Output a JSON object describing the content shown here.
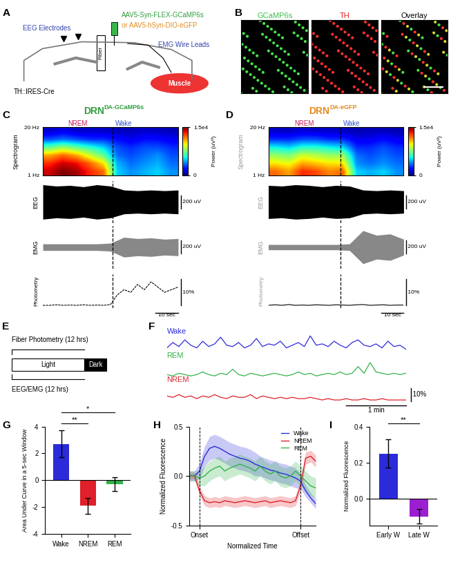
{
  "panel_labels": [
    "A",
    "B",
    "C",
    "D",
    "E",
    "F",
    "G",
    "H",
    "I"
  ],
  "schematic": {
    "virus": "AAV5-Syn-FLEX-GCaMP6s",
    "virus_alt": "or AAV5-hSyn-DIO-eGFP",
    "eeg": "EEG Electrodes",
    "fiber": "Fiber",
    "emg": "EMG Wire Leads",
    "muscle": "Muscle",
    "mouse_line": "TH::IRES-Cre"
  },
  "microscopy": {
    "channels": [
      "GCaMP6s",
      "TH",
      "Overlay"
    ]
  },
  "recordings": [
    {
      "title": "DRN",
      "title_superscript": "DA-GCaMP6s",
      "color": "#2e9e3e",
      "states": [
        "NREM",
        "Wake"
      ],
      "transition": 31,
      "time_range": [
        0,
        60
      ],
      "spectrogram": {
        "label": "Spectrogram",
        "freq_range": [
          1,
          20
        ],
        "freq_labels": [
          "1 Hz",
          "20 Hz"
        ],
        "cells": [
          [
            14000,
            15000,
            14500,
            13000,
            12000,
            5000,
            4000,
            4500,
            5000,
            4000
          ],
          [
            13000,
            14000,
            13500,
            12000,
            10000,
            4500,
            3500,
            4000,
            4500,
            3500
          ],
          [
            11000,
            12000,
            11000,
            9000,
            7000,
            3500,
            3000,
            3500,
            4000,
            3000
          ],
          [
            7000,
            8000,
            7000,
            6000,
            5000,
            3000,
            2500,
            3000,
            3000,
            2500
          ],
          [
            3000,
            3500,
            3000,
            2500,
            2500,
            2000,
            1500,
            2000,
            2000,
            1500
          ],
          [
            1000,
            1500,
            1000,
            1000,
            1000,
            800,
            800,
            1000,
            900,
            800
          ]
        ],
        "colorbar": {
          "range": [
            0,
            15000
          ],
          "ticks": [
            0,
            {
              "value": 15000,
              "label": "1.5e4"
            }
          ],
          "label": "Power (uV²)"
        }
      },
      "eeg": {
        "label": "EEG",
        "t": [
          0,
          6,
          12,
          18,
          24,
          30,
          36,
          42,
          48,
          54,
          60
        ],
        "envelope": [
          260,
          240,
          250,
          230,
          260,
          240,
          180,
          170,
          180,
          170,
          180
        ],
        "range": [
          -320,
          320
        ],
        "scale_bar": {
          "value": 200,
          "label": "200 uV"
        }
      },
      "emg": {
        "label": "EMG",
        "t": [
          0,
          6,
          12,
          18,
          24,
          30,
          36,
          42,
          48,
          54,
          60
        ],
        "envelope": [
          50,
          50,
          50,
          50,
          50,
          60,
          150,
          130,
          140,
          120,
          130
        ],
        "range": [
          -320,
          320
        ],
        "scale_bar": {
          "value": 200,
          "label": "200 uV"
        }
      },
      "photometry": {
        "label": "Photometry",
        "t": [
          0,
          3,
          6,
          9,
          12,
          15,
          18,
          21,
          24,
          27,
          30,
          33,
          36,
          39,
          42,
          45,
          48,
          51,
          54,
          57,
          60
        ],
        "values": [
          0,
          0,
          0.2,
          0,
          0.1,
          0,
          0.2,
          0,
          0.1,
          0,
          0.3,
          4,
          6,
          5,
          8,
          6,
          9,
          7,
          5,
          6,
          7
        ],
        "range": [
          -1,
          12
        ],
        "scale_bar": {
          "value": 10,
          "label": "10%"
        }
      },
      "time_scale_bar": {
        "value": 10,
        "label": "10 sec"
      }
    },
    {
      "title": "DRN",
      "title_superscript": "DA-eGFP",
      "color": "#e58a1f",
      "states": [
        "NREM",
        "Wake"
      ],
      "transition": 32,
      "time_range": [
        0,
        60
      ],
      "spectrogram": {
        "label": "Spectrogram",
        "freq_range": [
          1,
          20
        ],
        "freq_labels": [
          "1 Hz",
          "20 Hz"
        ],
        "cells": [
          [
            12000,
            11000,
            13000,
            12500,
            11500,
            12000,
            5000,
            4500,
            5000,
            4000
          ],
          [
            10000,
            9500,
            11000,
            10500,
            10000,
            10000,
            4000,
            3500,
            4000,
            3500
          ],
          [
            8000,
            7500,
            9000,
            8500,
            8000,
            8000,
            3500,
            3000,
            3500,
            3000
          ],
          [
            5500,
            5000,
            6000,
            6000,
            5500,
            5000,
            2500,
            2500,
            3000,
            2500
          ],
          [
            2500,
            2500,
            3000,
            3000,
            2500,
            2500,
            1500,
            1500,
            2000,
            1500
          ],
          [
            1000,
            900,
            1200,
            1000,
            1000,
            900,
            700,
            800,
            800,
            700
          ]
        ],
        "colorbar": {
          "range": [
            0,
            15000
          ],
          "ticks": [
            0,
            {
              "value": 15000,
              "label": "1.5e4"
            }
          ],
          "label": "Power (uV²)"
        }
      },
      "eeg": {
        "label": "EEG",
        "t": [
          0,
          6,
          12,
          18,
          24,
          30,
          36,
          42,
          48,
          54,
          60
        ],
        "envelope": [
          250,
          240,
          260,
          250,
          230,
          250,
          240,
          180,
          170,
          180,
          170
        ],
        "range": [
          -320,
          320
        ],
        "scale_bar": {
          "value": 200,
          "label": "200 uV"
        }
      },
      "emg": {
        "label": "EMG",
        "t": [
          0,
          6,
          12,
          18,
          24,
          30,
          36,
          42,
          48,
          54,
          60
        ],
        "envelope": [
          40,
          40,
          40,
          40,
          40,
          40,
          50,
          250,
          180,
          200,
          120
        ],
        "range": [
          -320,
          320
        ],
        "scale_bar": {
          "value": 200,
          "label": "200 uV"
        }
      },
      "photometry": {
        "label": "Photometry",
        "t": [
          0,
          3,
          6,
          9,
          12,
          15,
          18,
          21,
          24,
          27,
          30,
          33,
          36,
          39,
          42,
          45,
          48,
          51,
          54,
          57,
          60
        ],
        "values": [
          0,
          0.2,
          0,
          0.3,
          0,
          0.1,
          0,
          0.2,
          0.1,
          0,
          0.2,
          0.1,
          0,
          0.2,
          0.3,
          0,
          0.1,
          0.2,
          0,
          0.1,
          0.1
        ],
        "range": [
          -1,
          12
        ],
        "scale_bar": {
          "value": 10,
          "label": "10%"
        }
      },
      "time_scale_bar": {
        "value": 10,
        "label": "10 sec"
      }
    }
  ],
  "timeline": {
    "top": "Fiber Photometry (12 hrs)",
    "light": "Light",
    "dark": "Dark",
    "bottom": "EEG/EMG (12 hrs)"
  },
  "traces": {
    "t": [
      0,
      6,
      12,
      18,
      24,
      30,
      36,
      42,
      48,
      54,
      60,
      66,
      72,
      78,
      84,
      90,
      96,
      102,
      108,
      114,
      120,
      126,
      132,
      138,
      144,
      150,
      156,
      162,
      168,
      174,
      180,
      186,
      192,
      198,
      204,
      210,
      216,
      222,
      228,
      234,
      240
    ],
    "series": [
      {
        "name": "Wake",
        "color": "#2b2bd9",
        "values": [
          4,
          8,
          5,
          10,
          6,
          4,
          9,
          5,
          7,
          12,
          6,
          5,
          8,
          4,
          6,
          11,
          5,
          7,
          6,
          9,
          4,
          6,
          8,
          5,
          13,
          6,
          7,
          5,
          9,
          6,
          4,
          8,
          10,
          6,
          5,
          7,
          4,
          9,
          5,
          6,
          3
        ]
      },
      {
        "name": "REM",
        "color": "#33b24a",
        "values": [
          2,
          1,
          3,
          2,
          1,
          2,
          4,
          2,
          1,
          3,
          2,
          6,
          2,
          1,
          3,
          2,
          1,
          2,
          3,
          2,
          1,
          2,
          4,
          2,
          3,
          1,
          2,
          3,
          2,
          4,
          2,
          3,
          8,
          3,
          11,
          4,
          3,
          2,
          3,
          2,
          3
        ]
      },
      {
        "name": "NREM",
        "color": "#e0202a",
        "values": [
          4,
          3,
          5,
          3,
          4,
          2,
          4,
          3,
          5,
          3,
          2,
          4,
          3,
          3,
          5,
          2,
          4,
          3,
          2,
          3,
          2,
          3,
          2,
          2,
          3,
          2,
          1,
          2,
          1,
          1,
          2,
          1,
          1,
          2,
          1,
          1,
          2,
          1,
          1,
          1,
          1
        ]
      }
    ],
    "scale_bars": {
      "amplitude": {
        "value": 10,
        "label": "10%"
      },
      "time": {
        "value": 60,
        "label": "1 min"
      }
    }
  },
  "chart_data": [
    {
      "type": "bar",
      "categories": [
        "Wake",
        "NREM",
        "REM"
      ],
      "values": [
        2.7,
        -1.9,
        -0.3
      ],
      "errors": [
        1.0,
        0.6,
        0.5
      ],
      "colors": [
        "#2b2bd9",
        "#e0202a",
        "#33b24a"
      ],
      "ylim": [
        -4,
        4
      ],
      "yticks": [
        -4,
        -2,
        0,
        2,
        4
      ],
      "y_label": "Area Under Curve in a 5-sec Window",
      "annotations": [
        {
          "text": "**",
          "between": [
            "Wake",
            "NREM"
          ]
        },
        {
          "text": "*",
          "between": [
            "Wake",
            "REM"
          ]
        }
      ]
    },
    {
      "type": "line",
      "x": [
        -0.1,
        -0.05,
        0.0,
        0.05,
        0.1,
        0.15,
        0.2,
        0.25,
        0.3,
        0.35,
        0.4,
        0.45,
        0.5,
        0.55,
        0.6,
        0.65,
        0.7,
        0.75,
        0.8,
        0.85,
        0.9,
        0.95,
        1.0,
        1.05,
        1.1,
        1.15
      ],
      "series": [
        {
          "name": "Wake",
          "color": "#2b2bd9",
          "values": [
            0.0,
            0.0,
            0.05,
            0.2,
            0.28,
            0.3,
            0.28,
            0.25,
            0.22,
            0.2,
            0.18,
            0.17,
            0.15,
            0.12,
            0.1,
            0.08,
            0.06,
            0.05,
            0.03,
            0.02,
            0.0,
            -0.02,
            -0.05,
            -0.15,
            -0.22,
            -0.28
          ],
          "errors": [
            0.05,
            0.05,
            0.08,
            0.1,
            0.12,
            0.12,
            0.12,
            0.12,
            0.12,
            0.12,
            0.12,
            0.12,
            0.12,
            0.12,
            0.1,
            0.1,
            0.1,
            0.1,
            0.1,
            0.1,
            0.1,
            0.1,
            0.08,
            0.06,
            0.05,
            0.05
          ]
        },
        {
          "name": "NREM",
          "color": "#e0202a",
          "values": [
            0.0,
            0.0,
            -0.15,
            -0.25,
            -0.27,
            -0.26,
            -0.27,
            -0.25,
            -0.26,
            -0.27,
            -0.26,
            -0.25,
            -0.26,
            -0.27,
            -0.26,
            -0.25,
            -0.27,
            -0.26,
            -0.25,
            -0.26,
            -0.27,
            -0.25,
            -0.1,
            0.18,
            0.2,
            0.15
          ],
          "errors": [
            0.03,
            0.03,
            0.05,
            0.05,
            0.05,
            0.05,
            0.05,
            0.05,
            0.05,
            0.05,
            0.05,
            0.05,
            0.05,
            0.05,
            0.05,
            0.05,
            0.05,
            0.05,
            0.05,
            0.05,
            0.05,
            0.05,
            0.06,
            0.06,
            0.06,
            0.06
          ]
        },
        {
          "name": "REM",
          "color": "#33b24a",
          "values": [
            0.0,
            0.0,
            -0.02,
            0.0,
            0.05,
            0.08,
            0.1,
            0.05,
            0.08,
            0.1,
            0.12,
            0.1,
            0.08,
            0.05,
            0.1,
            0.05,
            0.02,
            0.05,
            0.0,
            -0.02,
            0.0,
            0.05,
            0.0,
            -0.05,
            -0.1,
            -0.12
          ],
          "errors": [
            0.05,
            0.05,
            0.08,
            0.1,
            0.1,
            0.1,
            0.1,
            0.1,
            0.1,
            0.1,
            0.1,
            0.1,
            0.1,
            0.1,
            0.1,
            0.1,
            0.1,
            0.1,
            0.1,
            0.1,
            0.1,
            0.1,
            0.1,
            0.1,
            0.1,
            0.1
          ]
        }
      ],
      "xlim": [
        -0.1,
        1.15
      ],
      "xticks": [
        {
          "value": 0,
          "label": "Onset"
        },
        {
          "value": 1,
          "label": "Offset"
        }
      ],
      "ylim": [
        -0.5,
        0.5
      ],
      "yticks": [
        -0.5,
        0.0,
        0.5
      ],
      "x_label": "Normalized Time",
      "y_label": "Normalized Fluorescence",
      "legend": "upper right"
    },
    {
      "type": "bar",
      "categories": [
        "Early W",
        "Late W"
      ],
      "values": [
        0.25,
        -0.1
      ],
      "errors": [
        0.08,
        0.04
      ],
      "colors": [
        "#2b2bd9",
        "#9b1fd1"
      ],
      "ylim": [
        -0.15,
        0.4
      ],
      "yticks": [
        0.0,
        0.2,
        0.4
      ],
      "y_label": "Normalized Fluorescence",
      "annotations": [
        {
          "text": "**",
          "between": [
            "Early W",
            "Late W"
          ]
        }
      ]
    }
  ]
}
